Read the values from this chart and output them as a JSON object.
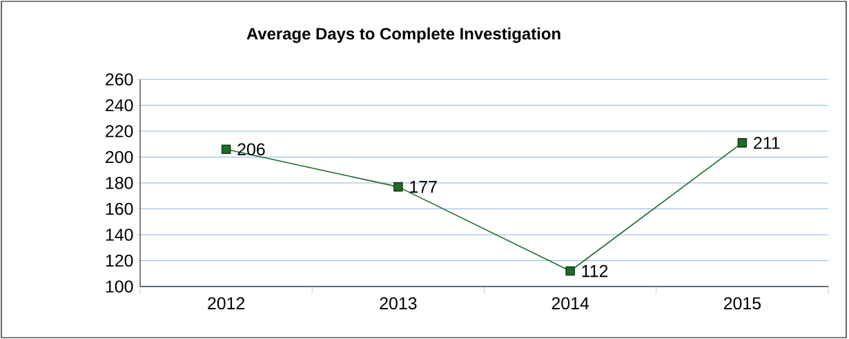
{
  "chart_data": {
    "type": "line",
    "title": "Average Days to Complete Investigation",
    "categories": [
      "2012",
      "2013",
      "2014",
      "2015"
    ],
    "values": [
      206,
      177,
      112,
      211
    ],
    "color": "#1e6b2a",
    "marker": "square",
    "line_style": "solid",
    "data_labels": true,
    "ylim": [
      100,
      260
    ],
    "yticks": [
      100,
      120,
      140,
      160,
      180,
      200,
      220,
      240,
      260
    ],
    "grid": "y"
  }
}
